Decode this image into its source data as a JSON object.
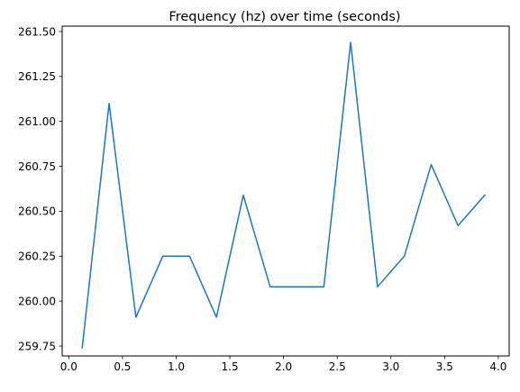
{
  "chart_data": {
    "type": "line",
    "title": "Frequency (hz) over time (seconds)",
    "xlabel": "",
    "ylabel": "",
    "xlim": [
      0.0,
      4.0
    ],
    "ylim": [
      259.75,
      261.5
    ],
    "xticks": [
      "0.0",
      "0.5",
      "1.0",
      "1.5",
      "2.0",
      "2.5",
      "3.0",
      "3.5",
      "4.0"
    ],
    "yticks": [
      "259.75",
      "260.00",
      "260.25",
      "260.50",
      "260.75",
      "261.00",
      "261.25",
      "261.50"
    ],
    "grid": false,
    "series": [
      {
        "color": "#1f77b4",
        "x": [
          0.125,
          0.375,
          0.625,
          0.875,
          1.125,
          1.375,
          1.625,
          1.875,
          2.125,
          2.375,
          2.625,
          2.875,
          3.125,
          3.375,
          3.625,
          3.875
        ],
        "y": [
          259.74,
          261.1,
          259.91,
          260.25,
          260.25,
          259.91,
          260.59,
          260.08,
          260.08,
          260.08,
          261.44,
          260.08,
          260.25,
          260.76,
          260.42,
          260.59
        ]
      }
    ]
  }
}
